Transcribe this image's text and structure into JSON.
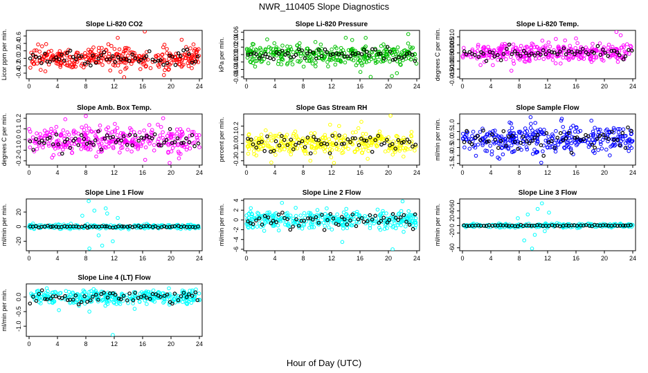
{
  "figure": {
    "title": "NWR_110405  Slope Diagnostics",
    "xlabel": "Hour of Day (UTC)"
  },
  "chart_data": [
    {
      "type": "scatter",
      "title": "Slope Li-820 CO2",
      "ylabel": "Licor ppm per min.",
      "color": "#ff0000",
      "xlim": [
        0,
        24
      ],
      "ylim": [
        -0.55,
        0.75
      ],
      "xticks": [
        0,
        4,
        8,
        12,
        16,
        20,
        24
      ],
      "yticks": [
        -0.4,
        -0.2,
        0.0,
        0.2,
        0.4,
        0.6
      ],
      "ytick_labels": [
        "-0.4",
        "-0.2",
        "0.0",
        "0.2",
        "0.4",
        "0.6"
      ],
      "n_points": 340,
      "spread": 0.14,
      "outliers": [
        [
          16.3,
          0.72
        ],
        [
          13.4,
          -0.51
        ],
        [
          19.0,
          -0.45
        ],
        [
          21.5,
          0.5
        ],
        [
          12.5,
          0.55
        ]
      ],
      "black_series_spread": 0.1
    },
    {
      "type": "scatter",
      "title": "Slope Li-820 Pressure",
      "ylabel": "kPa per min.",
      "color": "#00c000",
      "xlim": [
        0,
        24
      ],
      "ylim": [
        -0.065,
        0.065
      ],
      "xticks": [
        0,
        4,
        8,
        12,
        16,
        20,
        24
      ],
      "yticks": [
        -0.06,
        -0.04,
        -0.02,
        0.0,
        0.02,
        0.04,
        0.06
      ],
      "ytick_labels": [
        "-0.06",
        "-0.04",
        "-0.02",
        "0.00",
        "0.02",
        "0.04",
        "0.06"
      ],
      "n_points": 340,
      "spread": 0.014,
      "outliers": [
        [
          17.5,
          -0.06
        ],
        [
          20.5,
          -0.058
        ],
        [
          16.8,
          0.045
        ],
        [
          21.2,
          -0.05
        ],
        [
          22.8,
          0.055
        ]
      ],
      "black_series_spread": 0.01
    },
    {
      "type": "scatter",
      "title": "Slope Li-820 Temp.",
      "ylabel": "degrees C per min.",
      "color": "#ff00ff",
      "xlim": [
        0,
        24
      ],
      "ylim": [
        -0.016,
        0.014
      ],
      "xticks": [
        0,
        4,
        8,
        12,
        16,
        20,
        24
      ],
      "yticks": [
        -0.015,
        -0.01,
        -0.005,
        0.0,
        0.005,
        0.01
      ],
      "ytick_labels": [
        "-0.015",
        "-0.010",
        "-0.005",
        "0.000",
        "0.005",
        "0.010"
      ],
      "n_points": 340,
      "spread": 0.003,
      "outliers": [
        [
          21.7,
          0.013
        ],
        [
          22.3,
          0.011
        ],
        [
          6.9,
          -0.011
        ],
        [
          16.0,
          0.009
        ]
      ],
      "black_series_spread": 0.002
    },
    {
      "type": "scatter",
      "title": "Slope Amb. Box Temp.",
      "ylabel": "degrees C per min.",
      "color": "#ff00ff",
      "xlim": [
        0,
        24
      ],
      "ylim": [
        -0.24,
        0.24
      ],
      "xticks": [
        0,
        4,
        8,
        12,
        16,
        20,
        24
      ],
      "yticks": [
        -0.2,
        -0.1,
        0.0,
        0.1,
        0.2
      ],
      "ytick_labels": [
        "-0.2",
        "-0.1",
        "0.0",
        "0.1",
        "0.2"
      ],
      "n_points": 340,
      "spread": 0.06,
      "outliers": [
        [
          19.8,
          -0.22
        ],
        [
          5.1,
          0.19
        ],
        [
          18.9,
          0.2
        ],
        [
          8.0,
          0.22
        ]
      ],
      "black_series_spread": 0.05
    },
    {
      "type": "scatter",
      "title": "Slope Gas Stream RH",
      "ylabel": "percent per min.",
      "color": "#ffff00",
      "xlim": [
        0,
        24
      ],
      "ylim": [
        -0.25,
        0.34
      ],
      "xticks": [
        0,
        4,
        8,
        12,
        16,
        20,
        24
      ],
      "yticks": [
        -0.2,
        -0.1,
        0.0,
        0.1,
        0.2
      ],
      "ytick_labels": [
        "-0.2",
        "-0.1",
        "0.0",
        "0.1",
        "0.2"
      ],
      "n_points": 340,
      "spread": 0.07,
      "outliers": [
        [
          20.3,
          0.32
        ],
        [
          3.5,
          -0.22
        ],
        [
          16.2,
          0.25
        ],
        [
          9.0,
          -0.2
        ]
      ],
      "black_series_spread": 0.06
    },
    {
      "type": "scatter",
      "title": "Slope Sample Flow",
      "ylabel": "ml/min per min.",
      "color": "#0000ff",
      "xlim": [
        0,
        24
      ],
      "ylim": [
        -1.6,
        1.6
      ],
      "xticks": [
        0,
        4,
        8,
        12,
        16,
        20,
        24
      ],
      "yticks": [
        -1.5,
        -1.0,
        -0.5,
        0.0,
        0.5,
        1.0
      ],
      "ytick_labels": [
        "-1.5",
        "-1.0",
        "-0.5",
        "0.0",
        "0.5",
        "1.0"
      ],
      "n_points": 340,
      "spread": 0.4,
      "outliers": [
        [
          11.1,
          -1.45
        ],
        [
          9.6,
          1.4
        ],
        [
          5.2,
          -1.2
        ],
        [
          14.0,
          1.3
        ]
      ],
      "black_series_spread": 0.35
    },
    {
      "type": "scatter",
      "title": "Slope Line 1 Flow",
      "ylabel": "ml/min per min.",
      "color": "#00ffff",
      "xlim": [
        0,
        24
      ],
      "ylim": [
        -33,
        38
      ],
      "xticks": [
        0,
        4,
        8,
        12,
        16,
        20,
        24
      ],
      "yticks": [
        -20,
        0,
        20
      ],
      "ytick_labels": [
        "-20",
        "0",
        "20"
      ],
      "n_points": 260,
      "spread": 1.5,
      "outliers": [
        [
          8.4,
          35
        ],
        [
          8.5,
          -30
        ],
        [
          9.2,
          22
        ],
        [
          10.3,
          -26
        ],
        [
          11.0,
          18
        ],
        [
          11.8,
          -20
        ],
        [
          7.5,
          15
        ],
        [
          12.5,
          12
        ],
        [
          9.8,
          -12
        ],
        [
          10.8,
          25
        ]
      ],
      "black_series_spread": 0.6
    },
    {
      "type": "scatter",
      "title": "Slope Line 2 Flow",
      "ylabel": "ml/min per min.",
      "color": "#00ffff",
      "xlim": [
        0,
        24
      ],
      "ylim": [
        -6.3,
        4.3
      ],
      "xticks": [
        0,
        4,
        8,
        12,
        16,
        20,
        24
      ],
      "yticks": [
        -6,
        -4,
        -2,
        0,
        2,
        4
      ],
      "ytick_labels": [
        "-6",
        "-4",
        "-2",
        "0",
        "2",
        "4"
      ],
      "n_points": 340,
      "spread": 0.9,
      "outliers": [
        [
          20.6,
          -6.0
        ],
        [
          22.0,
          3.8
        ],
        [
          13.5,
          -4.5
        ],
        [
          5.0,
          3.5
        ]
      ],
      "black_series_spread": 0.8
    },
    {
      "type": "scatter",
      "title": "Slope Line 3 Flow",
      "ylabel": "ml/min per min.",
      "color": "#00ffff",
      "xlim": [
        0,
        24
      ],
      "ylim": [
        -68,
        72
      ],
      "xticks": [
        0,
        4,
        8,
        12,
        16,
        20,
        24
      ],
      "yticks": [
        -60,
        -20,
        0,
        20,
        40,
        60
      ],
      "ytick_labels": [
        "-60",
        "-20",
        "0",
        "20",
        "40",
        "60"
      ],
      "n_points": 260,
      "spread": 2.5,
      "outliers": [
        [
          9.8,
          -62
        ],
        [
          11.2,
          60
        ],
        [
          10.6,
          45
        ],
        [
          8.7,
          -40
        ],
        [
          9.2,
          30
        ],
        [
          10.2,
          -25
        ],
        [
          12.2,
          35
        ],
        [
          7.8,
          20
        ],
        [
          11.6,
          -15
        ]
      ],
      "black_series_spread": 1.0
    },
    {
      "type": "scatter",
      "title": "Slope Line 4 (LT) Flow",
      "ylabel": "ml/min per min.",
      "color": "#00ffff",
      "xlim": [
        0,
        24
      ],
      "ylim": [
        -1.35,
        0.45
      ],
      "xticks": [
        0,
        4,
        8,
        12,
        16,
        20,
        24
      ],
      "yticks": [
        -1.0,
        -0.5,
        0.0
      ],
      "ytick_labels": [
        "-1.0",
        "-0.5",
        "0.0"
      ],
      "n_points": 340,
      "spread": 0.12,
      "outliers": [
        [
          11.8,
          -1.3
        ],
        [
          8.5,
          -0.5
        ],
        [
          4.2,
          -0.45
        ],
        [
          2.5,
          0.3
        ]
      ],
      "black_series_spread": 0.1
    }
  ]
}
